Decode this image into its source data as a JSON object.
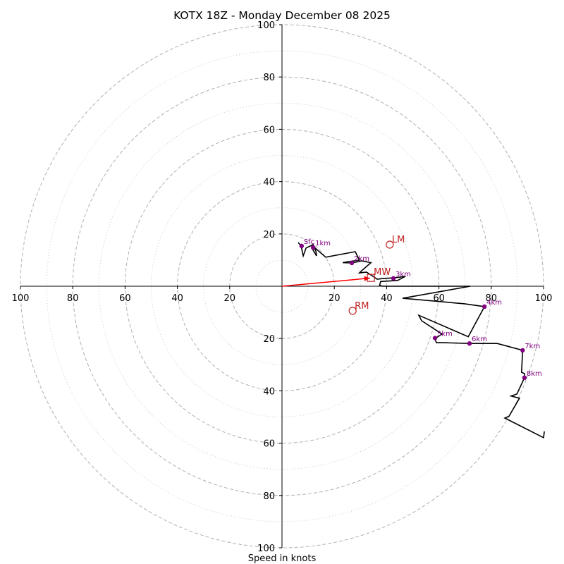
{
  "chart_data": {
    "type": "hodograph",
    "title": "KOTX 18Z - Monday December 08 2025",
    "xlabel": "Speed in knots",
    "range": [
      -100,
      100
    ],
    "rings_major": [
      20,
      40,
      60,
      80,
      100
    ],
    "rings_minor": [
      10,
      30,
      50,
      70,
      90
    ],
    "x_ticks": [
      {
        "v": -100,
        "label": "100"
      },
      {
        "v": -80,
        "label": "80"
      },
      {
        "v": -60,
        "label": "60"
      },
      {
        "v": -40,
        "label": "40"
      },
      {
        "v": -20,
        "label": "20"
      },
      {
        "v": 20,
        "label": "20"
      },
      {
        "v": 40,
        "label": "40"
      },
      {
        "v": 60,
        "label": "60"
      },
      {
        "v": 80,
        "label": "80"
      },
      {
        "v": 100,
        "label": "100"
      }
    ],
    "y_ticks": [
      {
        "v": 100,
        "label": "100"
      },
      {
        "v": 80,
        "label": "80"
      },
      {
        "v": 60,
        "label": "60"
      },
      {
        "v": 40,
        "label": "40"
      },
      {
        "v": 20,
        "label": "20"
      },
      {
        "v": -20,
        "label": "20"
      },
      {
        "v": -40,
        "label": "40"
      },
      {
        "v": -60,
        "label": "60"
      },
      {
        "v": -80,
        "label": "80"
      },
      {
        "v": -100,
        "label": "100"
      }
    ],
    "trace": [
      [
        6.2,
        16.7
      ],
      [
        7.3,
        15.4
      ],
      [
        8.1,
        11.6
      ],
      [
        9.2,
        14.6
      ],
      [
        11.9,
        15.9
      ],
      [
        13.0,
        13.3
      ],
      [
        13.2,
        11.6
      ],
      [
        11.6,
        14.3
      ],
      [
        12.1,
        15.1
      ],
      [
        16.7,
        11.1
      ],
      [
        28.0,
        13.2
      ],
      [
        29.6,
        10.0
      ],
      [
        25.6,
        9.4
      ],
      [
        23.2,
        9.0
      ],
      [
        26.7,
        8.9
      ],
      [
        30.5,
        9.7
      ],
      [
        34.0,
        9.0
      ],
      [
        30.2,
        5.7
      ],
      [
        29.6,
        5.1
      ],
      [
        32.3,
        5.4
      ],
      [
        34.8,
        3.8
      ],
      [
        36.4,
        2.7
      ],
      [
        38.8,
        3.0
      ],
      [
        43.1,
        3.2
      ],
      [
        47.2,
        3.8
      ],
      [
        44.2,
        2.2
      ],
      [
        37.7,
        1.8
      ],
      [
        37.3,
        0.3
      ],
      [
        38.5,
        0
      ],
      [
        72.0,
        0
      ],
      [
        46.1,
        -4.6
      ],
      [
        69.8,
        -6.7
      ],
      [
        77.4,
        -7.8
      ],
      [
        71.2,
        -19.3
      ],
      [
        52.3,
        -11.1
      ],
      [
        53.4,
        -13.2
      ],
      [
        61.2,
        -18.3
      ],
      [
        58.5,
        -20.0
      ],
      [
        59.0,
        -21.6
      ],
      [
        62.0,
        -21.6
      ],
      [
        71.7,
        -21.9
      ],
      [
        82.3,
        -21.9
      ],
      [
        92.0,
        -24.5
      ],
      [
        91.6,
        -32.9
      ],
      [
        92.7,
        -33.4
      ],
      [
        92.7,
        -35.0
      ],
      [
        89.8,
        -41.2
      ],
      [
        87.6,
        -42.0
      ],
      [
        90.8,
        -42.8
      ],
      [
        86.8,
        -49.7
      ],
      [
        85.2,
        -50.4
      ],
      [
        100.0,
        -57.9
      ],
      [
        100.3,
        -55.5
      ]
    ],
    "height_markers": [
      {
        "label": "Sfc",
        "u": 7.5,
        "v": 15.4
      },
      {
        "label": "1km",
        "u": 11.9,
        "v": 14.8
      },
      {
        "label": "2km",
        "u": 26.7,
        "v": 8.9
      },
      {
        "label": "3km",
        "u": 42.6,
        "v": 3.0
      },
      {
        "label": "4km",
        "u": 77.4,
        "v": -7.8
      },
      {
        "label": "5km",
        "u": 58.5,
        "v": -19.8
      },
      {
        "label": "6km",
        "u": 71.7,
        "v": -21.9
      },
      {
        "label": "7km",
        "u": 92.0,
        "v": -24.5
      },
      {
        "label": "8km",
        "u": 92.7,
        "v": -35.0
      }
    ],
    "storm_motion": {
      "LM": {
        "label": "LM",
        "u": 41.2,
        "v": 15.9
      },
      "RM": {
        "label": "RM",
        "u": 27.0,
        "v": -9.4
      },
      "MW": {
        "label": "MW",
        "u": 34.0,
        "v": 3.2
      }
    },
    "mean_wind_vector": {
      "u": 33.6,
      "v": 3.1
    },
    "colors": {
      "trace": "#000000",
      "markers": "#800080",
      "storm": "#c0201f",
      "vector": "#ff0000",
      "grid": "#b0b0b0"
    }
  }
}
